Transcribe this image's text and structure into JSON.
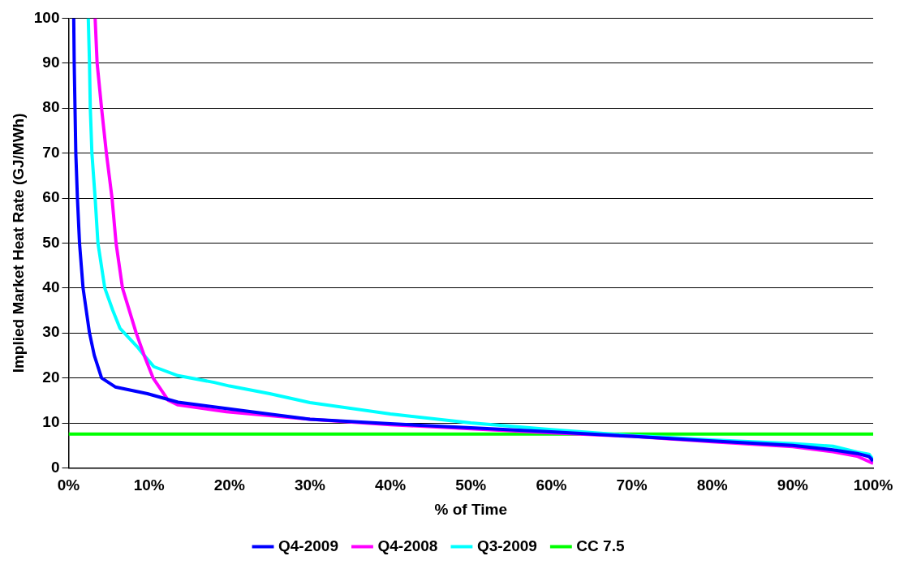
{
  "chart_data": {
    "type": "line",
    "xlabel": "% of Time",
    "ylabel": "Implied Market Heat Rate (GJ/MWh)",
    "xlim": [
      0,
      100
    ],
    "xticks": [
      {
        "value": 0,
        "label": "0%"
      },
      {
        "value": 10,
        "label": "10%"
      },
      {
        "value": 20,
        "label": "20%"
      },
      {
        "value": 30,
        "label": "30%"
      },
      {
        "value": 40,
        "label": "40%"
      },
      {
        "value": 50,
        "label": "50%"
      },
      {
        "value": 60,
        "label": "60%"
      },
      {
        "value": 70,
        "label": "70%"
      },
      {
        "value": 80,
        "label": "80%"
      },
      {
        "value": 90,
        "label": "90%"
      },
      {
        "value": 100,
        "label": "100%"
      }
    ],
    "ylim": [
      0,
      100
    ],
    "yticks": [
      0,
      10,
      20,
      30,
      40,
      50,
      60,
      70,
      80,
      90,
      100
    ],
    "grid": "y",
    "legend": "bottom",
    "marker": "none",
    "line_style": "solid",
    "series": [
      {
        "name": "Q4-2009",
        "color": "#0000ff",
        "x": [
          0.64,
          0.7,
          0.8,
          0.9,
          1.1,
          1.36,
          1.8,
          2.6,
          3.2,
          4.1,
          5.8,
          9.8,
          13.6,
          19.6,
          30,
          40,
          50,
          60,
          70,
          80,
          90,
          95,
          98,
          99.5,
          100
        ],
        "values": [
          100,
          90,
          80,
          70,
          60,
          50,
          40,
          30,
          25,
          20,
          18,
          16.5,
          14.6,
          13.2,
          10.8,
          9.8,
          8.9,
          8,
          7,
          6,
          5,
          4,
          3.2,
          2.5,
          1.5
        ]
      },
      {
        "name": "Q4-2008",
        "color": "#ff00ff",
        "x": [
          3.3,
          3.55,
          4.1,
          4.7,
          5.4,
          5.9,
          6.7,
          8.4,
          9.4,
          10.5,
          12.4,
          13.6,
          19.6,
          30,
          40,
          50,
          60,
          70,
          80,
          90,
          95,
          98,
          100
        ],
        "values": [
          100,
          90,
          80,
          70,
          60,
          50,
          40,
          30,
          25,
          20,
          15,
          14,
          12.5,
          10.8,
          9.6,
          8.7,
          7.8,
          7,
          5.8,
          4.7,
          3.6,
          2.6,
          1
        ]
      },
      {
        "name": "Q3-2009",
        "color": "#00ffff",
        "x": [
          2.45,
          2.6,
          2.7,
          2.9,
          3.3,
          3.65,
          4.5,
          5.5,
          6.4,
          8.5,
          9.4,
          10.6,
          13.6,
          18.1,
          20,
          25,
          30,
          40,
          50,
          60,
          70,
          80,
          90,
          95,
          98,
          99.5,
          100
        ],
        "values": [
          100,
          90,
          80,
          70,
          60,
          50,
          40,
          35,
          31,
          27,
          25,
          22.5,
          20.5,
          19,
          18.2,
          16.5,
          14.5,
          12,
          10,
          8.5,
          7.2,
          6.2,
          5.4,
          4.8,
          3.5,
          3,
          1.8
        ]
      },
      {
        "name": "CC 7.5",
        "color": "#00ff00",
        "x": [
          0,
          100
        ],
        "values": [
          7.5,
          7.5
        ]
      }
    ]
  }
}
